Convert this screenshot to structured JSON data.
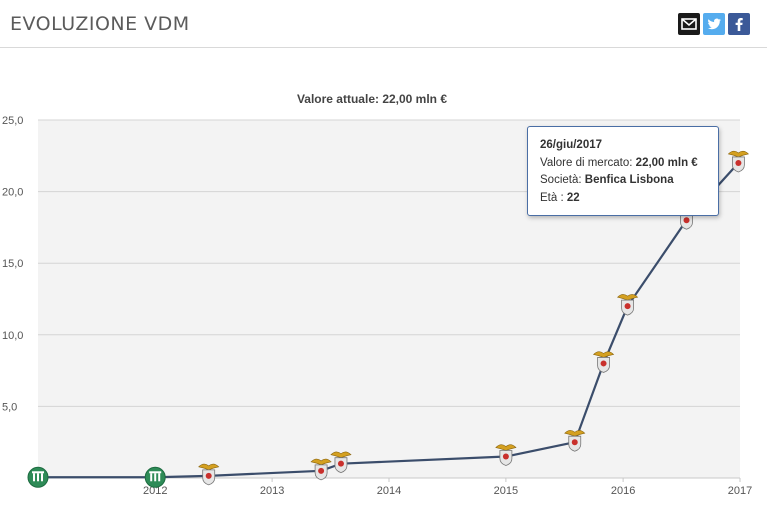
{
  "header": {
    "title": "EVOLUZIONE VDM",
    "share_icons": [
      "email-icon",
      "twitter-icon",
      "facebook-icon"
    ]
  },
  "chart_data": {
    "type": "line",
    "title": "Valore attuale: 22,00 mln €",
    "xlabel": "",
    "ylabel": "",
    "y_ticks": [
      "25,0",
      "20,0",
      "15,0",
      "10,0",
      "5,0"
    ],
    "x_ticks": [
      "2012",
      "2013",
      "2014",
      "2015",
      "2016",
      "2017"
    ],
    "ylim": [
      0,
      25
    ],
    "xlim": [
      "2011-07-01",
      "2017-07-01"
    ],
    "grid": true,
    "colors": {
      "line": "#3b4d6b",
      "plot_bg": "#f3f3f3",
      "grid": "#d4d4d4"
    },
    "series": [
      {
        "values": [
          {
            "x": "2011-07-01",
            "y": 0.05,
            "club": "Rapid Vienna"
          },
          {
            "x": "2012-07-01",
            "y": 0.05,
            "club": "Rapid Vienna"
          },
          {
            "x": "2012-12-15",
            "y": 0.15,
            "club": "Benfica Lisbona"
          },
          {
            "x": "2013-12-01",
            "y": 0.5,
            "club": "Benfica Lisbona"
          },
          {
            "x": "2014-02-01",
            "y": 1.0,
            "club": "Benfica Lisbona"
          },
          {
            "x": "2015-07-01",
            "y": 1.5,
            "club": "Benfica Lisbona"
          },
          {
            "x": "2016-02-01",
            "y": 2.5,
            "club": "Benfica Lisbona"
          },
          {
            "x": "2016-05-01",
            "y": 8.0,
            "club": "Benfica Lisbona"
          },
          {
            "x": "2016-07-15",
            "y": 12.0,
            "club": "Benfica Lisbona"
          },
          {
            "x": "2017-01-15",
            "y": 18.0,
            "club": "Benfica Lisbona"
          },
          {
            "x": "2017-06-26",
            "y": 22.0,
            "club": "Benfica Lisbona"
          }
        ]
      }
    ],
    "tooltip": {
      "date": "26/giu/2017",
      "value_label": "Valore di mercato:",
      "value": "22,00 mln €",
      "club_label": "Società:",
      "club": "Benfica Lisbona",
      "age_label": "Età :",
      "age": "22"
    }
  }
}
